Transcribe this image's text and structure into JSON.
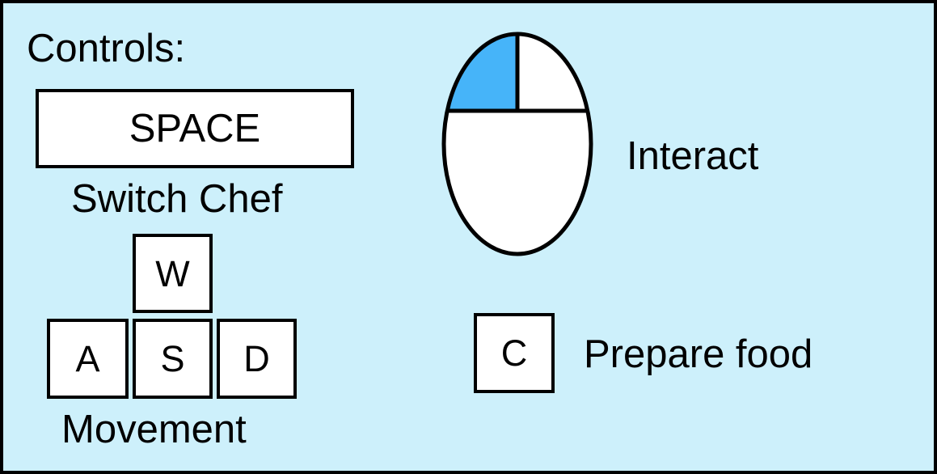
{
  "controls": {
    "title": "Controls:",
    "switch_chef": {
      "key": "SPACE",
      "label": "Switch Chef"
    },
    "movement": {
      "keys": {
        "up": "W",
        "left": "A",
        "down": "S",
        "right": "D"
      },
      "label": "Movement"
    },
    "interact": {
      "icon": "mouse-left-click-icon",
      "label": "Interact"
    },
    "prepare_food": {
      "key": "C",
      "label": "Prepare food"
    }
  },
  "colors": {
    "background": "#cdf0fb",
    "key_fill": "#ffffff",
    "outline": "#000000",
    "mouse_left_button_highlight": "#46b4f9"
  }
}
